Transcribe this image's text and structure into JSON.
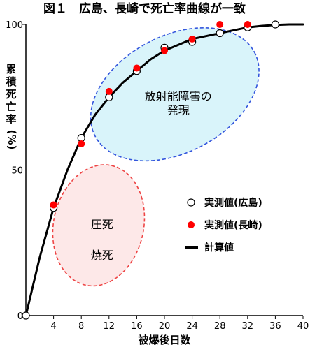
{
  "chart_data": {
    "type": "scatter",
    "title": "図１　広島、長崎で死亡率曲線が一致",
    "xlabel": "被爆後日数",
    "ylabel_lines": [
      "累",
      "積",
      "死",
      "亡",
      "率"
    ],
    "ylabel_unit": "(%)",
    "xlim": [
      0,
      40
    ],
    "ylim": [
      0,
      100
    ],
    "x_ticks": [
      "4",
      "8",
      "12",
      "16",
      "20",
      "24",
      "28",
      "32",
      "36",
      "40"
    ],
    "y_ticks": [
      "0",
      "50",
      "100"
    ],
    "grid": false,
    "legend_position": "right-middle",
    "series": [
      {
        "name": "実測値(広島)",
        "marker": "open-circle",
        "color": "#000000",
        "x": [
          0,
          4,
          8,
          12,
          16,
          20,
          24,
          28,
          32,
          36
        ],
        "y": [
          0,
          37,
          61,
          75,
          84,
          92,
          94,
          97,
          99,
          100
        ]
      },
      {
        "name": "実測値(長崎)",
        "marker": "filled-circle",
        "color": "#ff0000",
        "x": [
          4,
          8,
          12,
          16,
          20,
          24,
          28,
          32
        ],
        "y": [
          38,
          59,
          77,
          85,
          91,
          95,
          100,
          100
        ]
      },
      {
        "name": "計算値",
        "marker": "line",
        "color": "#000000",
        "x": [
          0,
          2,
          4,
          6,
          8,
          10,
          12,
          14,
          16,
          18,
          20,
          22,
          24,
          26,
          28,
          30,
          32,
          34,
          36,
          38,
          40
        ],
        "y": [
          0,
          20,
          37,
          50,
          61,
          69,
          75,
          80,
          84,
          88,
          91,
          93,
          95,
          96,
          97,
          98,
          99,
          99.5,
          99.8,
          100,
          100
        ]
      }
    ],
    "regions": [
      {
        "lines": [
          "放射能障害の",
          "発現"
        ],
        "fill": "#d9f4fa",
        "stroke": "#3355dd",
        "center": [
          21.5,
          76
        ],
        "radii": [
          13,
          20
        ],
        "rotation": -28
      },
      {
        "lines": [
          "圧死",
          "焼死"
        ],
        "fill": "#fde8e8",
        "stroke": "#ee4444",
        "center": [
          10.5,
          31
        ],
        "radii": [
          6.5,
          21
        ],
        "rotation": 12
      }
    ]
  }
}
